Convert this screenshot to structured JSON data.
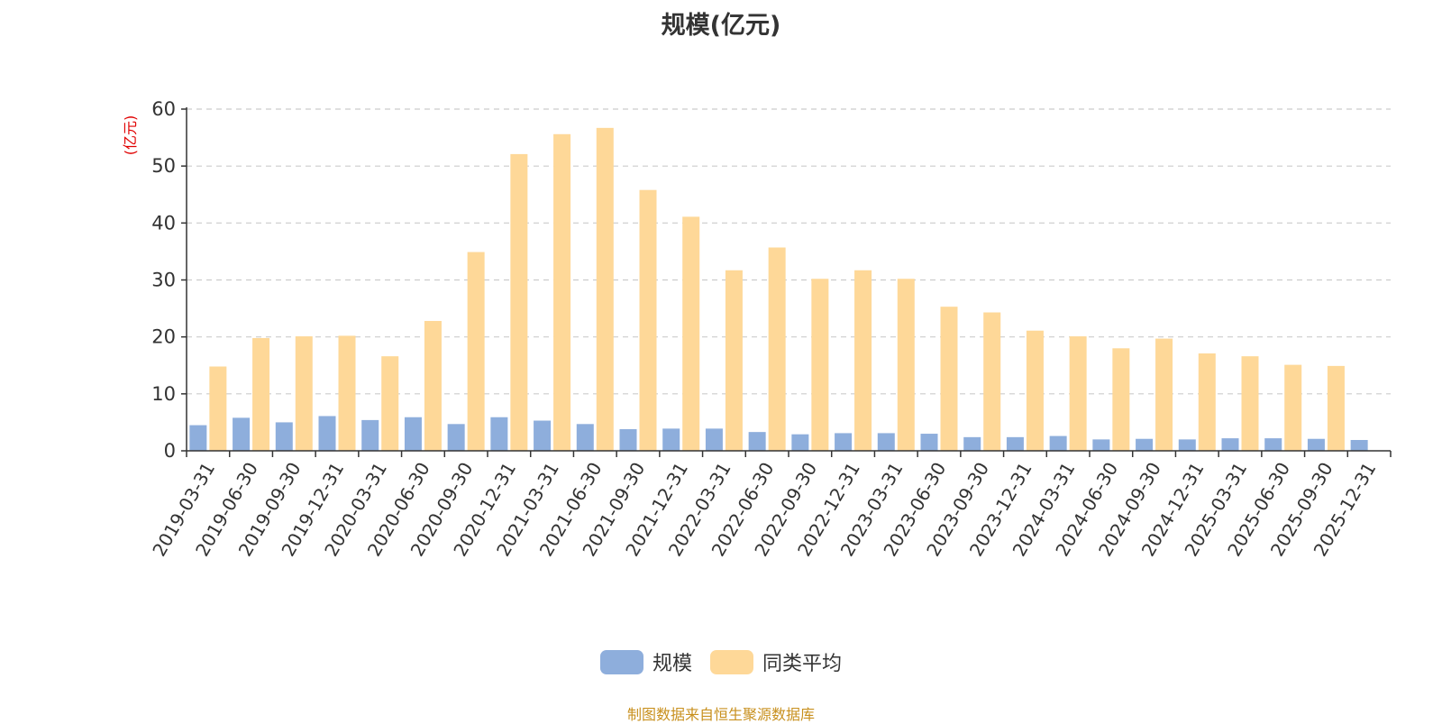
{
  "chart_data": {
    "type": "bar",
    "title": "规模(亿元)",
    "y_unit_label": "(亿元)",
    "ylim": [
      0,
      60
    ],
    "yticks": [
      0,
      10,
      20,
      30,
      40,
      50,
      60
    ],
    "grid": true,
    "legend_position": "bottom",
    "categories": [
      "2019-03-31",
      "2019-06-30",
      "2019-09-30",
      "2019-12-31",
      "2020-03-31",
      "2020-06-30",
      "2020-09-30",
      "2020-12-31",
      "2021-03-31",
      "2021-06-30",
      "2021-09-30",
      "2021-12-31",
      "2022-03-31",
      "2022-06-30",
      "2022-09-30",
      "2022-12-31",
      "2023-03-31",
      "2023-06-30",
      "2023-09-30",
      "2023-12-31",
      "2024-03-31",
      "2024-06-30",
      "2024-09-30",
      "2024-12-31",
      "2025-03-31",
      "2025-06-30",
      "2025-09-30",
      "2025-12-31"
    ],
    "series": [
      {
        "name": "规模",
        "color": "#8eaedc",
        "values": [
          4.5,
          5.8,
          5.0,
          6.1,
          5.4,
          5.9,
          4.7,
          5.9,
          5.3,
          4.7,
          3.8,
          3.9,
          3.9,
          3.3,
          2.9,
          3.1,
          3.1,
          3.0,
          2.4,
          2.4,
          2.6,
          2.0,
          2.1,
          2.0,
          2.2,
          2.2,
          2.1,
          1.9
        ]
      },
      {
        "name": "同类平均",
        "color": "#fed898",
        "values": [
          14.8,
          19.8,
          20.1,
          20.2,
          16.6,
          22.8,
          34.9,
          52.1,
          55.6,
          56.7,
          45.8,
          41.1,
          31.7,
          35.7,
          30.2,
          31.7,
          30.2,
          25.3,
          24.3,
          21.1,
          20.1,
          18.0,
          19.7,
          17.1,
          16.6,
          15.1,
          14.9,
          0
        ]
      }
    ]
  },
  "source_note": "制图数据来自恒生聚源数据库"
}
